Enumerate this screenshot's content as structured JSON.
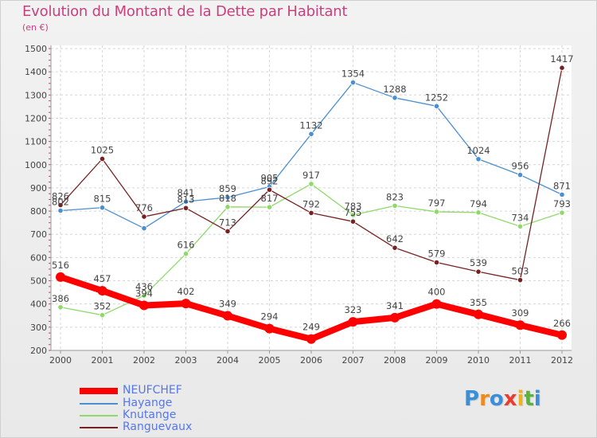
{
  "header": {
    "title": "Evolution du Montant de la Dette par Habitant",
    "subtitle": "(en €)"
  },
  "logo": {
    "text": "Proxiti",
    "letters": [
      "P",
      "r",
      "o",
      "x",
      "i",
      "t",
      "i"
    ],
    "colors": [
      "#3a8fd8",
      "#f08a1c",
      "#3a8fd8",
      "#e83e2e",
      "#f0b21c",
      "#58b53a",
      "#3a8fd8"
    ]
  },
  "chart_data": {
    "type": "line",
    "title": "Evolution du Montant de la Dette par Habitant",
    "subtitle": "(en €)",
    "x": [
      "2000",
      "2001",
      "2002",
      "2003",
      "2004",
      "2005",
      "2006",
      "2007",
      "2008",
      "2009",
      "2010",
      "2011",
      "2012"
    ],
    "ylim": [
      200,
      1500
    ],
    "yticks": [
      "200",
      "300",
      "400",
      "500",
      "600",
      "700",
      "800",
      "900",
      "1000",
      "1100",
      "1200",
      "1300",
      "1400",
      "1500"
    ],
    "grid": true,
    "legend_position": "bottom-left",
    "series": [
      {
        "name": "NEUFCHEF",
        "color": "#ff0000",
        "emphasis": true,
        "values": [
          516,
          457,
          394,
          402,
          349,
          294,
          249,
          323,
          341,
          400,
          355,
          309,
          266
        ],
        "labels": [
          "516",
          "457",
          "394",
          "402",
          "349",
          "294",
          "249",
          "323",
          "341",
          "400",
          "355",
          "309",
          "266"
        ]
      },
      {
        "name": "Hayange",
        "color": "#4a8fd0",
        "emphasis": false,
        "values": [
          802,
          815,
          726,
          841,
          859,
          905,
          1132,
          1354,
          1288,
          1252,
          1024,
          956,
          871
        ],
        "labels": [
          "802",
          "815",
          "",
          "841",
          "859",
          "905",
          "1132",
          "1354",
          "1288",
          "1252",
          "1024",
          "956",
          "871"
        ]
      },
      {
        "name": "Knutange",
        "color": "#8fd86a",
        "emphasis": false,
        "values": [
          386,
          352,
          436,
          616,
          818,
          817,
          917,
          783,
          823,
          797,
          794,
          734,
          793
        ],
        "labels": [
          "386",
          "352",
          "436",
          "616",
          "818",
          "817",
          "917",
          "783",
          "823",
          "797",
          "794",
          "734",
          "793"
        ]
      },
      {
        "name": "Ranguevaux",
        "color": "#772222",
        "emphasis": false,
        "values": [
          826,
          1025,
          776,
          813,
          713,
          892,
          792,
          755,
          642,
          579,
          539,
          503,
          1417
        ],
        "labels": [
          "826",
          "1025",
          "776",
          "813",
          "713",
          "892",
          "792",
          "755",
          "642",
          "579",
          "539",
          "503",
          "1417"
        ]
      }
    ]
  }
}
